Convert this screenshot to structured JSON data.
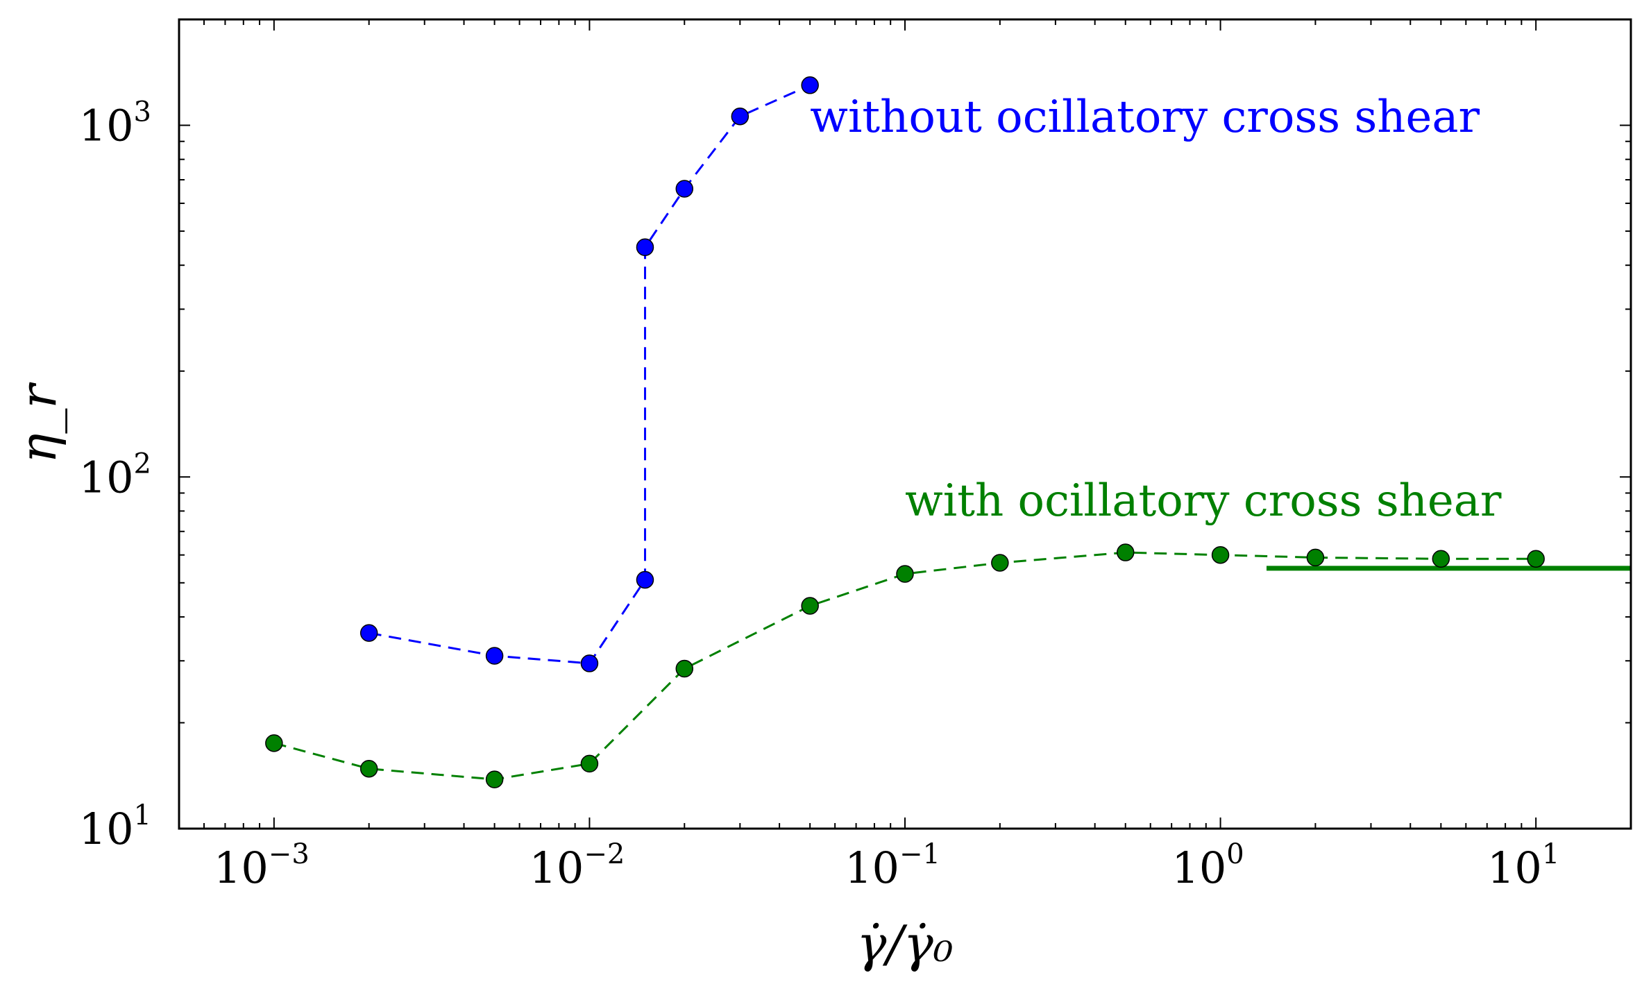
{
  "chart_data": {
    "type": "scatter",
    "xscale": "log",
    "yscale": "log",
    "xlabel": "γ̇/γ̇₀",
    "ylabel": "η_r",
    "xlim": [
      0.0005,
      20
    ],
    "ylim": [
      10,
      2000
    ],
    "grid": false,
    "x_ticks": [
      {
        "base": "10",
        "exp": "−3",
        "value": 0.001
      },
      {
        "base": "10",
        "exp": "−2",
        "value": 0.01
      },
      {
        "base": "10",
        "exp": "−1",
        "value": 0.1
      },
      {
        "base": "10",
        "exp": "0",
        "value": 1
      },
      {
        "base": "10",
        "exp": "1",
        "value": 10
      }
    ],
    "y_ticks": [
      {
        "base": "10",
        "exp": "1",
        "value": 10
      },
      {
        "base": "10",
        "exp": "2",
        "value": 100
      },
      {
        "base": "10",
        "exp": "3",
        "value": 1000
      }
    ],
    "series": [
      {
        "color": "#0000ff",
        "linestyle": "dashed",
        "points": [
          [
            0.002,
            36
          ],
          [
            0.005,
            31
          ],
          [
            0.01,
            29.5
          ],
          [
            0.015,
            51
          ],
          [
            0.015,
            450
          ],
          [
            0.02,
            660
          ],
          [
            0.03,
            1060
          ],
          [
            0.05,
            1300
          ]
        ]
      },
      {
        "color": "#008000",
        "linestyle": "dashed",
        "points": [
          [
            0.001,
            17.5
          ],
          [
            0.002,
            14.8
          ],
          [
            0.005,
            13.8
          ],
          [
            0.01,
            15.3
          ],
          [
            0.02,
            28.5
          ],
          [
            0.05,
            43
          ],
          [
            0.1,
            53
          ],
          [
            0.2,
            57
          ],
          [
            0.5,
            61
          ],
          [
            1,
            60
          ],
          [
            2,
            59
          ],
          [
            5,
            58.5
          ],
          [
            10,
            58.5
          ]
        ]
      }
    ],
    "reference_line": {
      "color": "#008000",
      "y": 55,
      "x_range": [
        1.4,
        20
      ]
    },
    "annotations": [
      {
        "text": "without ocillatory cross shear",
        "color": "#0000ff",
        "x": 0.05,
        "y": 1050
      },
      {
        "text": "with ocillatory cross shear",
        "color": "#008000",
        "x": 0.1,
        "y": 85
      }
    ]
  }
}
